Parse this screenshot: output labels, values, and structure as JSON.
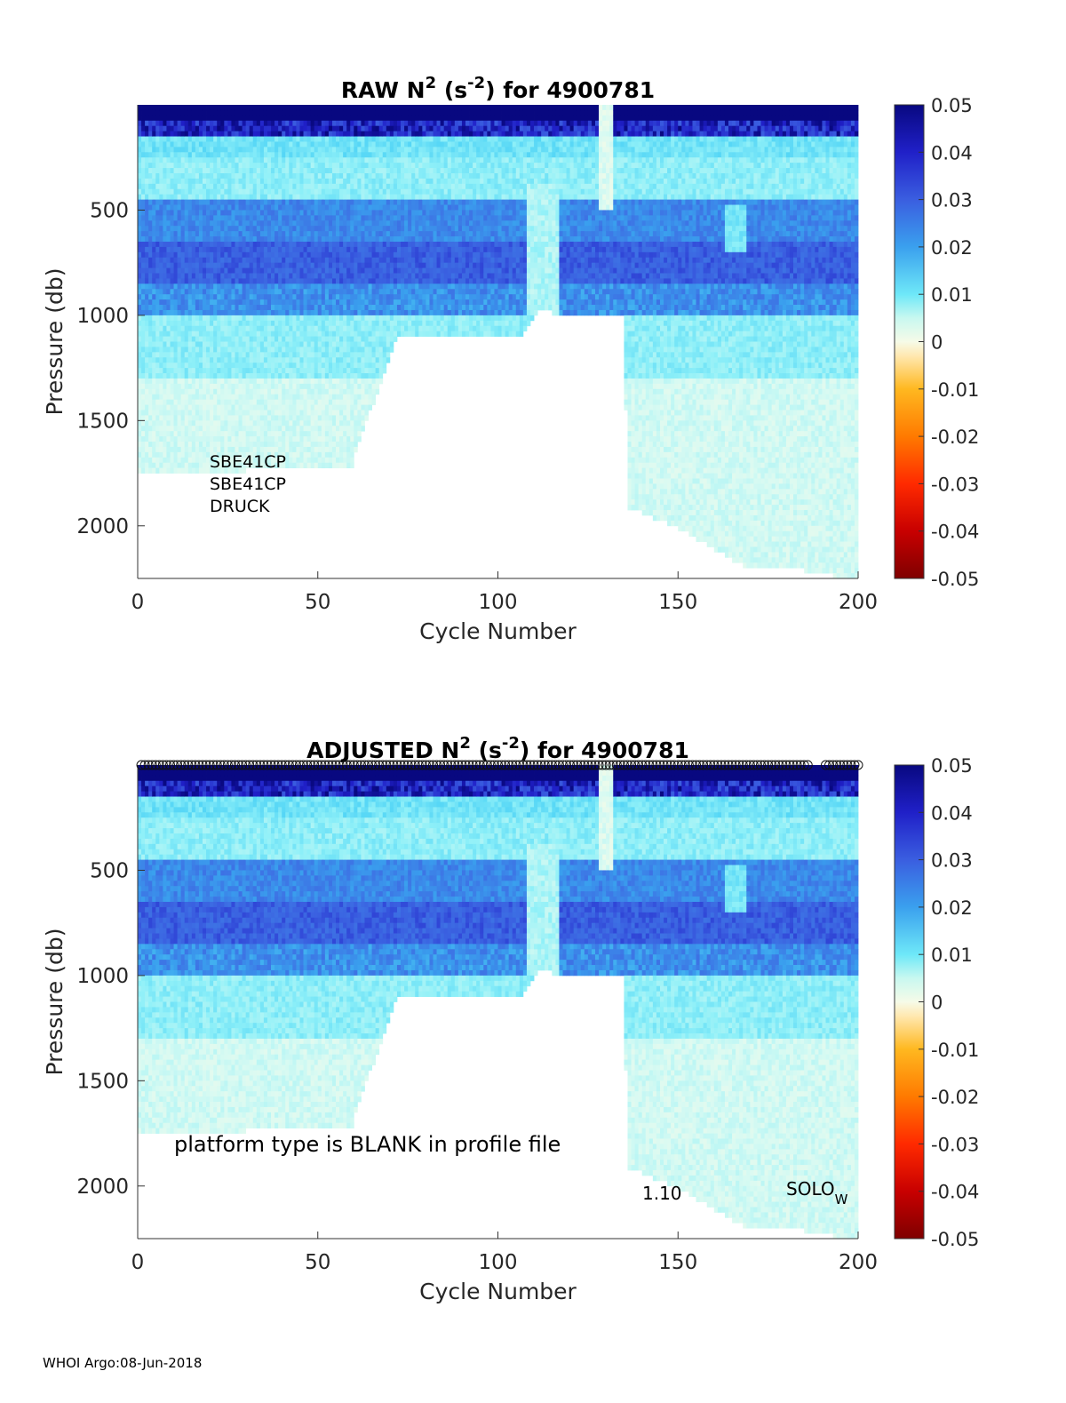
{
  "footer": "WHOI Argo:08-Jun-2018",
  "colorscale": {
    "stops": [
      "#7f0000",
      "#c00000",
      "#ff2000",
      "#ff7000",
      "#ffb000",
      "#ffe0a0",
      "#f8fbe8",
      "#e8fbf4",
      "#9ff6f8",
      "#40c8f5",
      "#3d8bea",
      "#3a5bdc",
      "#2525c8",
      "#0a0a8a"
    ]
  },
  "chart_data": [
    {
      "type": "heatmap",
      "title": "RAW N² (s⁻²) for 4900781",
      "title_prefix": "RAW N",
      "title_mid": "(s",
      "title_suffix": ") for 4900781",
      "xlabel": "Cycle Number",
      "ylabel": "Pressure (db)",
      "xlim": [
        0,
        200
      ],
      "ylim": [
        2250,
        0
      ],
      "x_ticks": [
        "0",
        "50",
        "100",
        "150",
        "200"
      ],
      "y_ticks": [
        "500",
        "1000",
        "1500",
        "2000"
      ],
      "colorbar": {
        "min": -0.05,
        "max": 0.05,
        "ticks": [
          "0.05",
          "0.04",
          "0.03",
          "0.02",
          "0.01",
          "0",
          "-0.01",
          "-0.02",
          "-0.03",
          "-0.04",
          "-0.05"
        ]
      },
      "depth_profile": {
        "cycles": [
          0,
          60,
          61,
          68,
          72,
          106,
          112,
          118,
          135,
          136,
          150,
          160,
          170,
          185,
          200
        ],
        "max_pressure": [
          1750,
          1700,
          1600,
          1300,
          1100,
          1100,
          950,
          1000,
          1000,
          1900,
          2000,
          2100,
          2200,
          2200,
          2250
        ]
      },
      "annotations": [
        "SBE41CP",
        "SBE41CP",
        "DRUCK"
      ]
    },
    {
      "type": "heatmap",
      "title": "ADJUSTED N² (s⁻²) for 4900781",
      "title_prefix": "ADJUSTED N",
      "title_mid": "(s",
      "title_suffix": ") for 4900781",
      "xlabel": "Cycle Number",
      "ylabel": "Pressure (db)",
      "xlim": [
        0,
        200
      ],
      "ylim": [
        2250,
        0
      ],
      "x_ticks": [
        "0",
        "50",
        "100",
        "150",
        "200"
      ],
      "y_ticks": [
        "500",
        "1000",
        "1500",
        "2000"
      ],
      "colorbar": {
        "min": -0.05,
        "max": 0.05,
        "ticks": [
          "0.05",
          "0.04",
          "0.03",
          "0.02",
          "0.01",
          "0",
          "-0.01",
          "-0.02",
          "-0.03",
          "-0.04",
          "-0.05"
        ]
      },
      "depth_profile": {
        "cycles": [
          0,
          60,
          61,
          68,
          72,
          106,
          112,
          118,
          135,
          136,
          150,
          160,
          170,
          185,
          200
        ],
        "max_pressure": [
          1750,
          1700,
          1600,
          1300,
          1100,
          1100,
          950,
          1000,
          1000,
          1900,
          2000,
          2100,
          2200,
          2200,
          2250
        ]
      },
      "annotations": [
        "platform type is BLANK in profile file",
        "1.10"
      ],
      "platform_label": "SOLO",
      "platform_sub": "W",
      "flag_markers": {
        "from_cycle": 1,
        "to_cycle": 200,
        "gap": [
          186,
          191
        ]
      }
    }
  ]
}
